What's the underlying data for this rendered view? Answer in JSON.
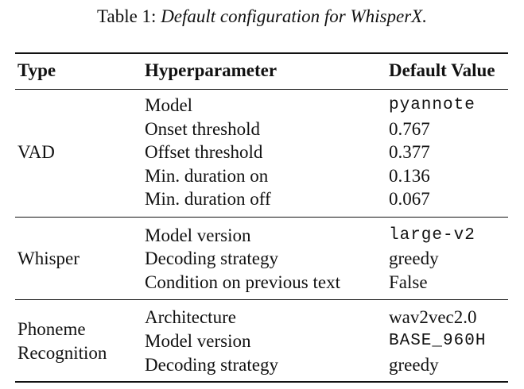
{
  "caption": {
    "prefix": "Table 1:",
    "title": "Default configuration for WhisperX."
  },
  "headers": {
    "type": "Type",
    "hyperparameter": "Hyperparameter",
    "default_value": "Default Value"
  },
  "groups": [
    {
      "type_lines": [
        "VAD"
      ],
      "rows": [
        {
          "param": "Model",
          "value": "pyannote",
          "mono": true
        },
        {
          "param": "Onset threshold",
          "value": "0.767",
          "mono": false
        },
        {
          "param": "Offset threshold",
          "value": "0.377",
          "mono": false
        },
        {
          "param": "Min. duration on",
          "value": "0.136",
          "mono": false
        },
        {
          "param": "Min. duration off",
          "value": "0.067",
          "mono": false
        }
      ]
    },
    {
      "type_lines": [
        "Whisper"
      ],
      "rows": [
        {
          "param": "Model version",
          "value": "large-v2",
          "mono": true
        },
        {
          "param": "Decoding strategy",
          "value": "greedy",
          "mono": false
        },
        {
          "param": "Condition on previous text",
          "value": "False",
          "mono": false
        }
      ]
    },
    {
      "type_lines": [
        "Phoneme",
        "Recognition"
      ],
      "rows": [
        {
          "param": "Architecture",
          "value": "wav2vec2.0",
          "mono": false
        },
        {
          "param": "Model version",
          "value": "BASE_960H",
          "mono": true
        },
        {
          "param": "Decoding strategy",
          "value": "greedy",
          "mono": false
        }
      ]
    }
  ]
}
